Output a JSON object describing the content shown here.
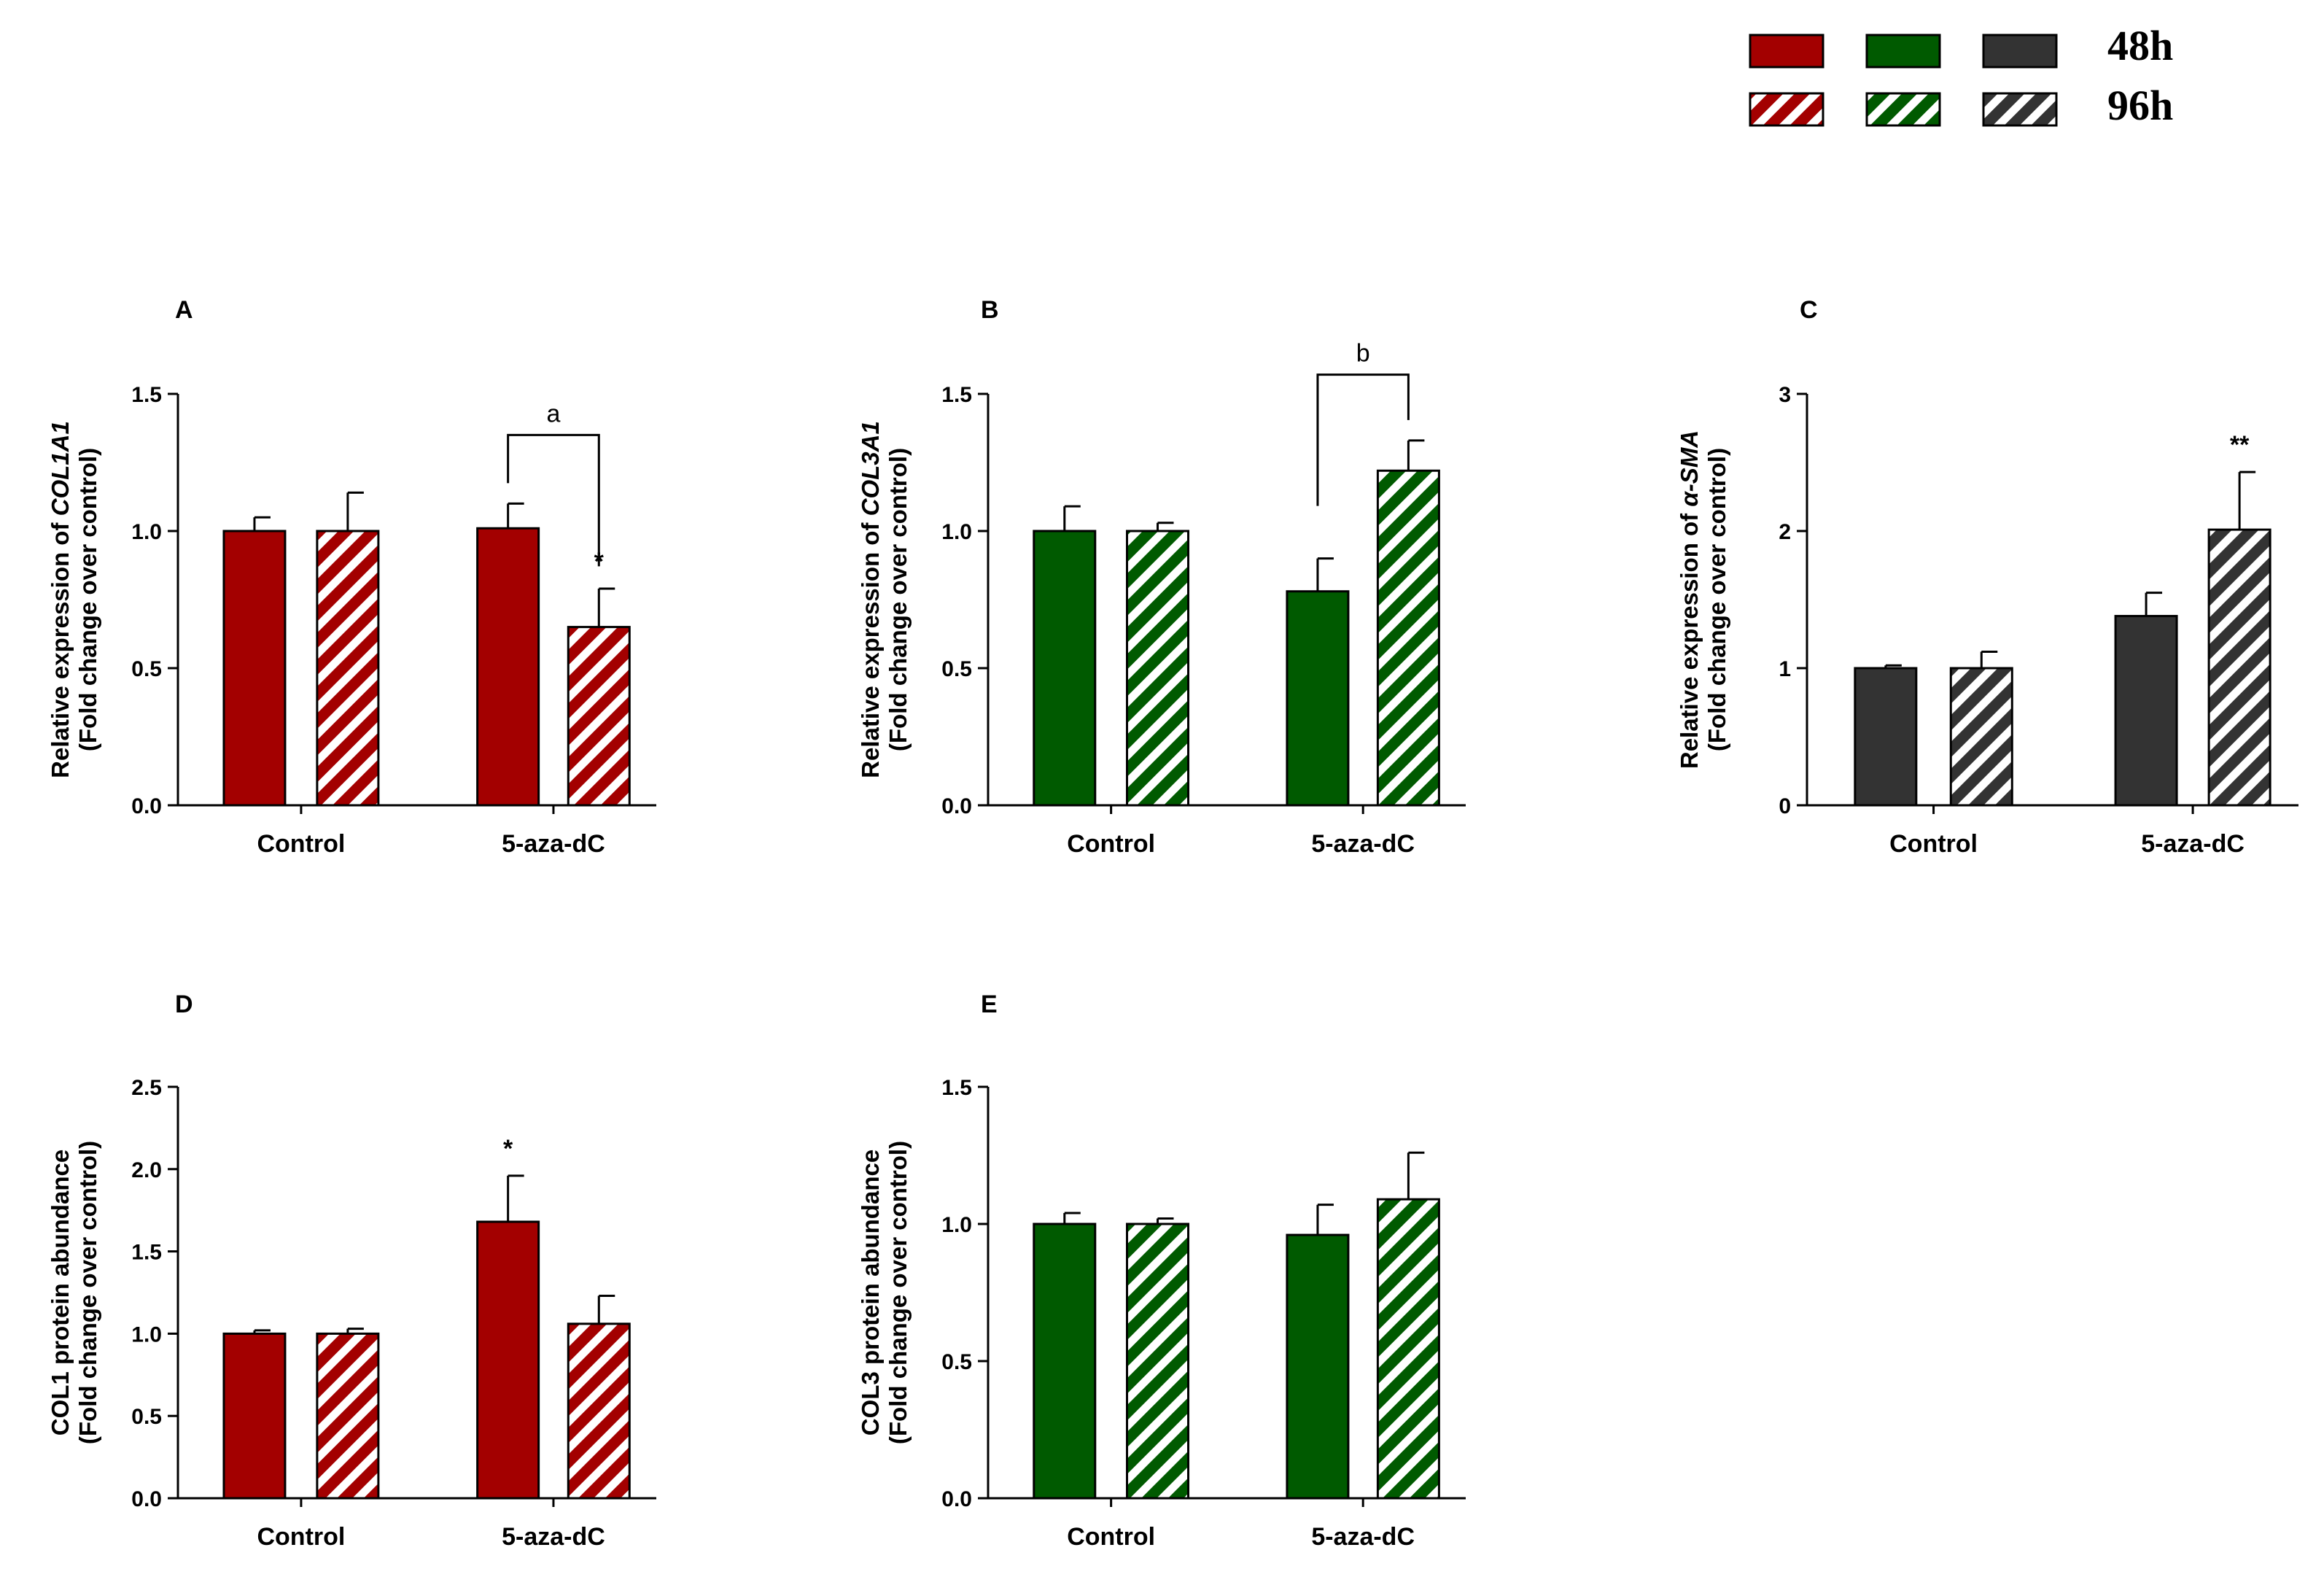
{
  "colors": {
    "red": "#a30000",
    "green": "#005a00",
    "gray": "#333333",
    "axis": "#000000"
  },
  "legend": {
    "rows": [
      {
        "label": "48h",
        "pattern": "solid"
      },
      {
        "label": "96h",
        "pattern": "hatched"
      }
    ],
    "swatch_colors": [
      "red",
      "green",
      "gray"
    ]
  },
  "chart_data": [
    {
      "panel": "A",
      "type": "bar",
      "color": "red",
      "ylabel_line1_prefix": "Relative expression of ",
      "ylabel_line1_italic": "COL1A1",
      "ylabel_line2": "(Fold change over control)",
      "ylim": [
        0,
        1.5
      ],
      "yticks": [
        0.0,
        0.5,
        1.0,
        1.5
      ],
      "ytick_labels": [
        "0.0",
        "0.5",
        "1.0",
        "1.5"
      ],
      "categories": [
        "Control",
        "5-aza-dC"
      ],
      "series": [
        {
          "name": "48h",
          "values": [
            1.0,
            1.01
          ],
          "errors": [
            0.05,
            0.09
          ]
        },
        {
          "name": "96h",
          "values": [
            1.0,
            0.65
          ],
          "errors": [
            0.14,
            0.14
          ]
        }
      ],
      "annotations": [
        {
          "text": "*",
          "category": 1,
          "series": 1
        }
      ],
      "brackets": [
        {
          "label": "a",
          "from": [
            1,
            0
          ],
          "to": [
            1,
            1
          ],
          "level": 1.35
        }
      ]
    },
    {
      "panel": "B",
      "type": "bar",
      "color": "green",
      "ylabel_line1_prefix": "Relative expression of ",
      "ylabel_line1_italic": "COL3A1",
      "ylabel_line2": "(Fold change over control)",
      "ylim": [
        0,
        1.5
      ],
      "yticks": [
        0.0,
        0.5,
        1.0,
        1.5
      ],
      "ytick_labels": [
        "0.0",
        "0.5",
        "1.0",
        "1.5"
      ],
      "categories": [
        "Control",
        "5-aza-dC"
      ],
      "series": [
        {
          "name": "48h",
          "values": [
            1.0,
            0.78
          ],
          "errors": [
            0.09,
            0.12
          ]
        },
        {
          "name": "96h",
          "values": [
            1.0,
            1.22
          ],
          "errors": [
            0.03,
            0.11
          ]
        }
      ],
      "annotations": [],
      "brackets": [
        {
          "label": "b",
          "from": [
            1,
            0
          ],
          "to": [
            1,
            1
          ],
          "level": 1.57
        }
      ]
    },
    {
      "panel": "C",
      "type": "bar",
      "color": "gray",
      "ylabel_line1_prefix": "Relative expression of ",
      "ylabel_line1_italic": "α-SMA",
      "ylabel_line2": "(Fold change over control)",
      "ylim": [
        0,
        3
      ],
      "yticks": [
        0,
        1,
        2,
        3
      ],
      "ytick_labels": [
        "0",
        "1",
        "2",
        "3"
      ],
      "categories": [
        "Control",
        "5-aza-dC"
      ],
      "series": [
        {
          "name": "48h",
          "values": [
            1.0,
            1.38
          ],
          "errors": [
            0.02,
            0.17
          ]
        },
        {
          "name": "96h",
          "values": [
            1.0,
            2.01
          ],
          "errors": [
            0.12,
            0.42
          ]
        }
      ],
      "annotations": [
        {
          "text": "**",
          "category": 1,
          "series": 1
        }
      ],
      "brackets": []
    },
    {
      "panel": "D",
      "type": "bar",
      "color": "red",
      "ylabel_line1_prefix": "COL1 protein abundance",
      "ylabel_line1_italic": "",
      "ylabel_line2": "(Fold change over control)",
      "ylim": [
        0,
        2.5
      ],
      "yticks": [
        0.0,
        0.5,
        1.0,
        1.5,
        2.0,
        2.5
      ],
      "ytick_labels": [
        "0.0",
        "0.5",
        "1.0",
        "1.5",
        "2.0",
        "2.5"
      ],
      "categories": [
        "Control",
        "5-aza-dC"
      ],
      "series": [
        {
          "name": "48h",
          "values": [
            1.0,
            1.68
          ],
          "errors": [
            0.02,
            0.28
          ]
        },
        {
          "name": "96h",
          "values": [
            1.0,
            1.06
          ],
          "errors": [
            0.03,
            0.17
          ]
        }
      ],
      "annotations": [
        {
          "text": "*",
          "category": 1,
          "series": 0
        }
      ],
      "brackets": []
    },
    {
      "panel": "E",
      "type": "bar",
      "color": "green",
      "ylabel_line1_prefix": "COL3 protein abundance",
      "ylabel_line1_italic": "",
      "ylabel_line2": "(Fold change over control)",
      "ylim": [
        0,
        1.5
      ],
      "yticks": [
        0.0,
        0.5,
        1.0,
        1.5
      ],
      "ytick_labels": [
        "0.0",
        "0.5",
        "1.0",
        "1.5"
      ],
      "categories": [
        "Control",
        "5-aza-dC"
      ],
      "series": [
        {
          "name": "48h",
          "values": [
            1.0,
            0.96
          ],
          "errors": [
            0.04,
            0.11
          ]
        },
        {
          "name": "96h",
          "values": [
            1.0,
            1.09
          ],
          "errors": [
            0.02,
            0.17
          ]
        }
      ],
      "annotations": [],
      "brackets": []
    }
  ]
}
